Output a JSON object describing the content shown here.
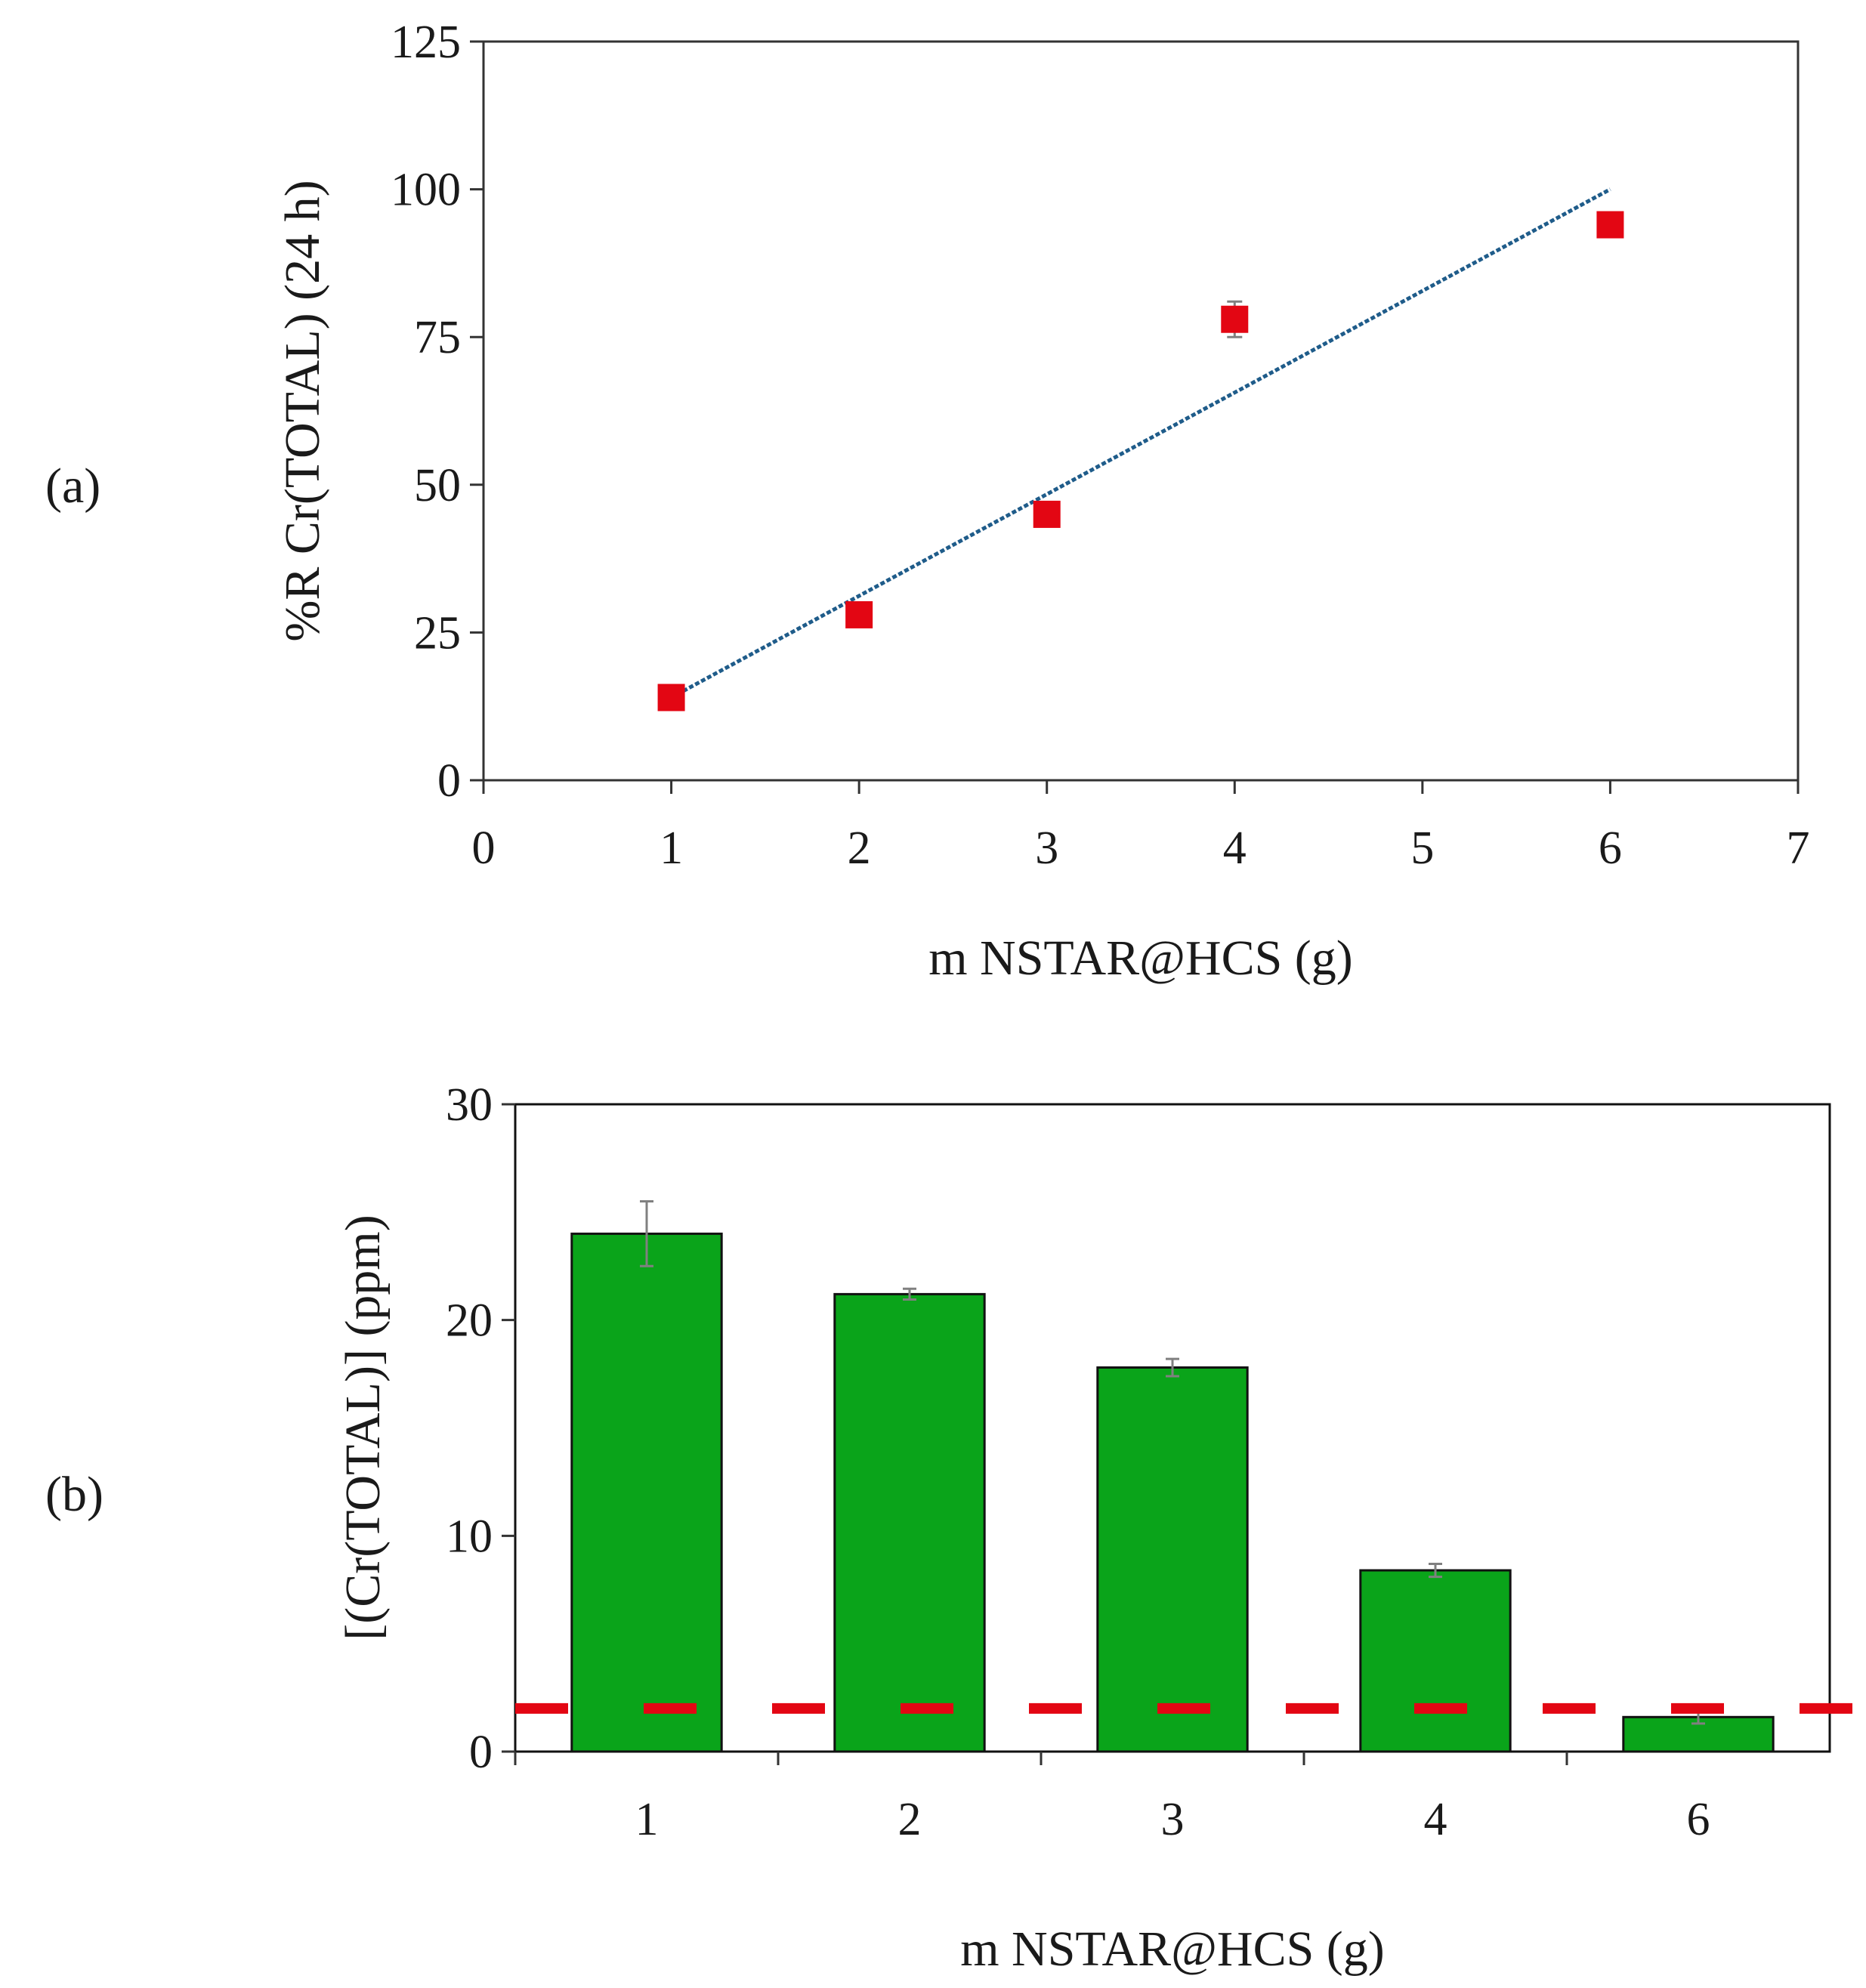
{
  "colors": {
    "marker": "#e30613",
    "trendline": "#1f5c8a",
    "bar_fill": "#0aa41a",
    "bar_stroke": "#111111",
    "error_bar": "#808080",
    "threshold": "#e30613",
    "axis": "#333333"
  },
  "chart_data": [
    {
      "panel": "(a)",
      "type": "scatter",
      "title": "",
      "xlabel": "m NSTAR@HCS (g)",
      "ylabel": "%R Cr(TOTAL) (24 h)",
      "xlim": [
        0,
        7
      ],
      "ylim": [
        0,
        125
      ],
      "xticks": [
        "0",
        "1",
        "2",
        "3",
        "4",
        "5",
        "6",
        "7"
      ],
      "yticks": [
        "0",
        "25",
        "50",
        "75",
        "100",
        "125"
      ],
      "grid": false,
      "series": [
        {
          "name": "%R Cr(TOTAL)",
          "x": [
            1,
            2,
            3,
            4,
            6
          ],
          "y": [
            14,
            28,
            45,
            78,
            94
          ],
          "error": [
            1,
            1,
            1,
            3,
            1.5
          ]
        }
      ],
      "trendline": {
        "type": "linear",
        "x": [
          1,
          6
        ],
        "y": [
          14,
          100
        ]
      }
    },
    {
      "panel": "(b)",
      "type": "bar",
      "title": "",
      "xlabel": "m NSTAR@HCS (g)",
      "ylabel": "[(Cr(TOTAL)]  (ppm)",
      "categories": [
        "1",
        "2",
        "3",
        "4",
        "6"
      ],
      "values": [
        24,
        21.2,
        17.8,
        8.4,
        1.6
      ],
      "error": [
        1.5,
        0.25,
        0.4,
        0.3,
        0.3
      ],
      "ylim": [
        0,
        30
      ],
      "yticks": [
        "0",
        "10",
        "20",
        "30"
      ],
      "grid": false,
      "threshold": {
        "y": 2,
        "style": "dashed"
      }
    }
  ]
}
